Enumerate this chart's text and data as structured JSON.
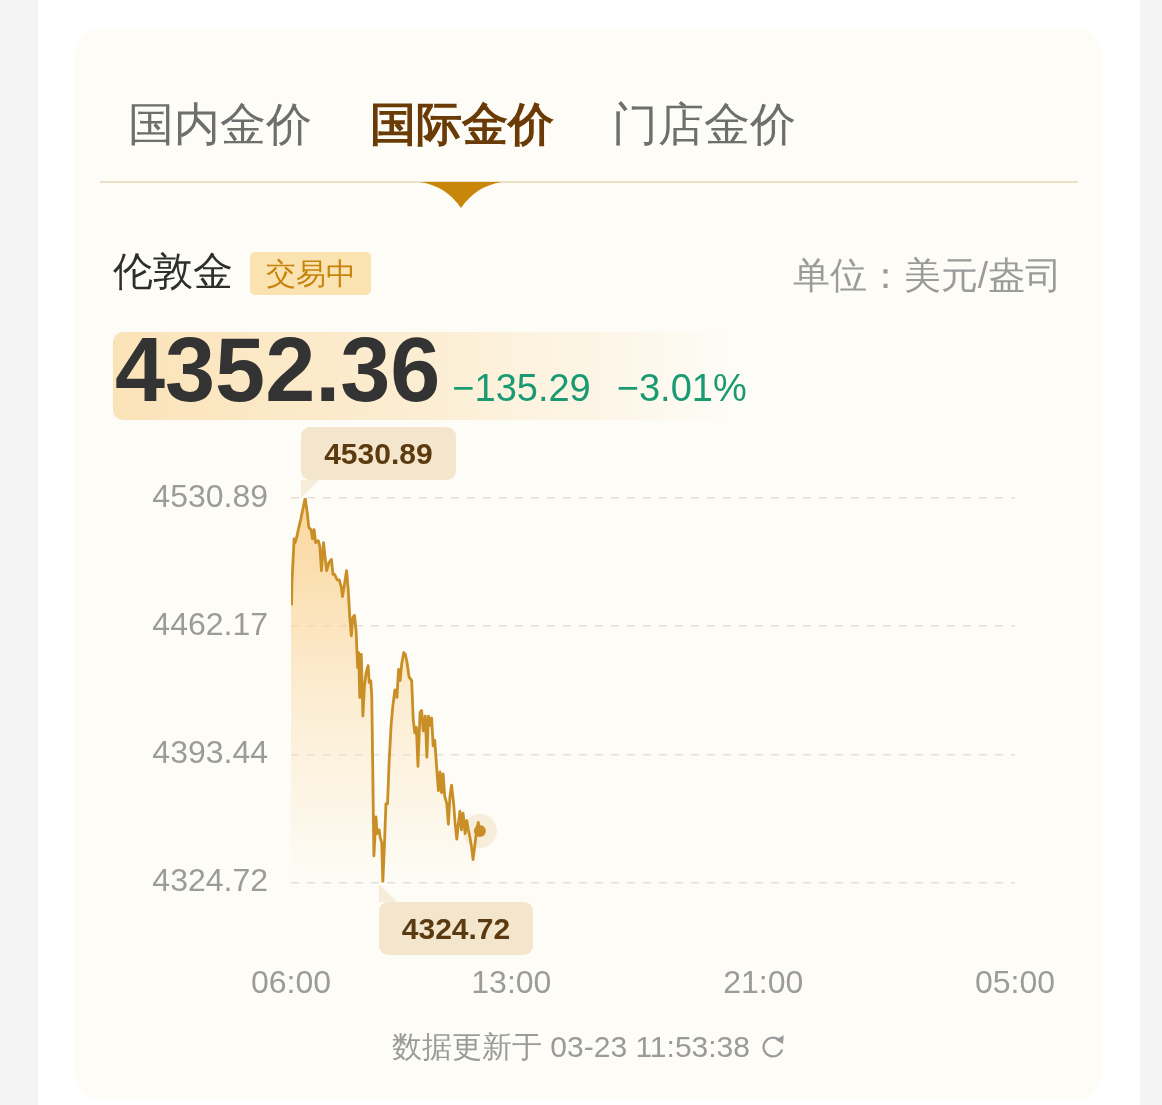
{
  "chart_data": {
    "type": "area",
    "title": "伦敦金",
    "ylabel": "单位：美元/盎司",
    "annotations": [
      "国内金价",
      "国际金价",
      "门店金价",
      "交易中",
      "4352.36",
      "−135.29",
      "−3.01%",
      {
        "text": "4530.89",
        "x": "--03-23T06:27",
        "y": 4530.89
      },
      {
        "text": "4324.72",
        "x": "--03-23T08:55",
        "y": 4324.72
      },
      "数据更新于 03-23 11:53:38"
    ],
    "x": [
      "--03-23T06:00",
      "--03-23T06:01",
      "--03-23T06:02",
      "--03-23T06:06",
      "--03-23T06:08",
      "--03-23T06:11",
      "--03-23T06:14",
      "--03-23T06:19",
      "--03-23T06:22",
      "--03-23T06:27",
      "--03-23T06:31",
      "--03-23T06:34",
      "--03-23T06:38",
      "--03-23T06:41",
      "--03-23T06:44",
      "--03-23T06:47",
      "--03-23T06:52",
      "--03-23T06:55",
      "--03-23T06:58",
      "--03-23T07:02",
      "--03-23T07:05",
      "--03-23T07:08",
      "--03-23T07:12",
      "--03-23T07:17",
      "--03-23T07:20",
      "--03-23T07:23",
      "--03-23T07:28",
      "--03-23T07:32",
      "--03-23T07:36",
      "--03-23T07:38",
      "--03-23T07:41",
      "--03-23T07:46",
      "--03-23T07:49",
      "--03-23T07:52",
      "--03-23T07:55",
      "--03-23T07:58",
      "--03-23T08:01",
      "--03-23T08:04",
      "--03-23T08:07",
      "--03-23T08:09",
      "--03-23T08:11",
      "--03-23T08:14",
      "--03-23T08:17",
      "--03-23T08:20",
      "--03-23T08:23",
      "--03-23T08:27",
      "--03-23T08:29",
      "--03-23T08:32",
      "--03-23T08:34",
      "--03-23T08:38",
      "--03-23T08:42",
      "--03-23T08:44",
      "--03-23T08:48",
      "--03-23T08:50",
      "--03-23T08:53",
      "--03-23T08:55",
      "--03-23T08:58",
      "--03-23T09:01",
      "--03-23T09:04",
      "--03-23T09:07",
      "--03-23T09:11",
      "--03-23T09:14",
      "--03-23T09:18",
      "--03-23T09:22",
      "--03-23T09:25",
      "--03-23T09:28",
      "--03-23T09:31",
      "--03-23T09:35",
      "--03-23T09:38",
      "--03-23T09:41",
      "--03-23T09:45",
      "--03-23T09:50",
      "--03-23T09:53",
      "--03-23T09:56",
      "--03-23T09:59",
      "--03-23T10:02",
      "--03-23T10:06",
      "--03-23T10:09",
      "--03-23T10:12",
      "--03-23T10:16",
      "--03-23T10:19",
      "--03-23T10:22",
      "--03-23T10:25",
      "--03-23T10:28",
      "--03-23T10:31",
      "--03-23T10:34",
      "--03-23T10:38",
      "--03-23T10:41",
      "--03-23T10:44",
      "--03-23T10:47",
      "--03-23T10:50",
      "--03-23T10:53",
      "--03-23T10:57",
      "--03-23T11:00",
      "--03-23T11:03",
      "--03-23T11:06",
      "--03-23T11:10",
      "--03-23T11:13",
      "--03-23T11:16",
      "--03-23T11:19",
      "--03-23T11:22",
      "--03-23T11:25",
      "--03-23T11:28",
      "--03-23T11:32",
      "--03-23T11:35",
      "--03-23T11:38",
      "--03-23T11:41",
      "--03-23T11:44",
      "--03-23T11:47",
      "--03-23T11:51",
      "--03-23T11:54",
      "--03-23T11:57",
      "--03-23T12:00"
    ],
    "series": [
      {
        "color": "#c98f26",
        "values": [
          4487,
          4474,
          4487,
          4509,
          4507,
          4510,
          4514,
          4520,
          4524,
          4530.89,
          4523,
          4515,
          4514,
          4509,
          4514,
          4507,
          4508,
          4505,
          4492,
          4507,
          4499,
          4492,
          4496,
          4498,
          4490,
          4490,
          4487,
          4487,
          4483,
          4478,
          4483,
          4492,
          4482,
          4467,
          4457,
          4467,
          4468,
          4460,
          4440,
          4448,
          4424,
          4447,
          4414,
          4430,
          4437,
          4441,
          4432,
          4433,
          4424,
          4339,
          4360,
          4351,
          4353,
          4349,
          4346,
          4324.72,
          4344,
          4367,
          4367,
          4389,
          4410,
          4419,
          4428,
          4424,
          4439,
          4433,
          4442,
          4448,
          4447,
          4443,
          4435,
          4433,
          4412,
          4405,
          4408,
          4387,
          4416,
          4417,
          4406,
          4414,
          4392,
          4414,
          4409,
          4413,
          4398,
          4401,
          4385,
          4374,
          4384,
          4373,
          4383,
          4371,
          4367,
          4356,
          4371,
          4377,
          4367,
          4356,
          4348,
          4356,
          4363,
          4353,
          4362,
          4351,
          4358,
          4353,
          4349,
          4344,
          4337,
          4346,
          4353,
          4357,
          4352.36
        ]
      }
    ],
    "xlim": [
      "--03-23T06:00",
      "--03-24T05:00"
    ],
    "xticks": [
      {
        "value": "--03-23T06:00",
        "label": "06:00"
      },
      {
        "value": "--03-23T13:00",
        "label": "13:00"
      },
      {
        "value": "--03-23T21:00",
        "label": "21:00"
      },
      {
        "value": "--03-24T05:00",
        "label": "05:00"
      }
    ],
    "ylim": [
      4324.72,
      4530.89
    ],
    "yticks": [
      4324.72,
      4393.44,
      4462.17,
      4530.89
    ],
    "grid": "y"
  }
}
